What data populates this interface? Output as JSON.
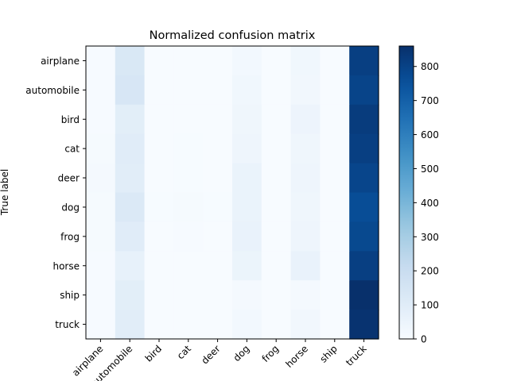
{
  "chart_data": {
    "type": "heatmap",
    "title": "Normalized confusion matrix",
    "ylabel": "True label",
    "xlabel": "",
    "x_categories": [
      "airplane",
      "automobile",
      "bird",
      "cat",
      "deer",
      "dog",
      "frog",
      "horse",
      "ship",
      "truck"
    ],
    "y_categories": [
      "airplane",
      "automobile",
      "bird",
      "cat",
      "deer",
      "dog",
      "frog",
      "horse",
      "ship",
      "truck"
    ],
    "values": [
      [
        5,
        130,
        1,
        1,
        1,
        20,
        1,
        30,
        1,
        810
      ],
      [
        6,
        140,
        1,
        1,
        1,
        30,
        1,
        25,
        1,
        795
      ],
      [
        5,
        90,
        1,
        2,
        1,
        35,
        1,
        45,
        1,
        820
      ],
      [
        8,
        100,
        2,
        3,
        2,
        40,
        2,
        35,
        1,
        810
      ],
      [
        12,
        95,
        2,
        3,
        2,
        55,
        2,
        40,
        1,
        790
      ],
      [
        10,
        120,
        3,
        8,
        3,
        55,
        2,
        35,
        1,
        765
      ],
      [
        8,
        100,
        2,
        4,
        2,
        60,
        2,
        40,
        1,
        780
      ],
      [
        5,
        70,
        1,
        2,
        1,
        50,
        1,
        60,
        1,
        810
      ],
      [
        5,
        90,
        1,
        1,
        1,
        15,
        1,
        15,
        1,
        860
      ],
      [
        5,
        95,
        1,
        1,
        1,
        20,
        1,
        25,
        1,
        850
      ]
    ],
    "colorbar": {
      "cmap": "Blues",
      "min": 0,
      "max": 860,
      "ticks": [
        0,
        100,
        200,
        300,
        400,
        500,
        600,
        700,
        800
      ]
    }
  }
}
